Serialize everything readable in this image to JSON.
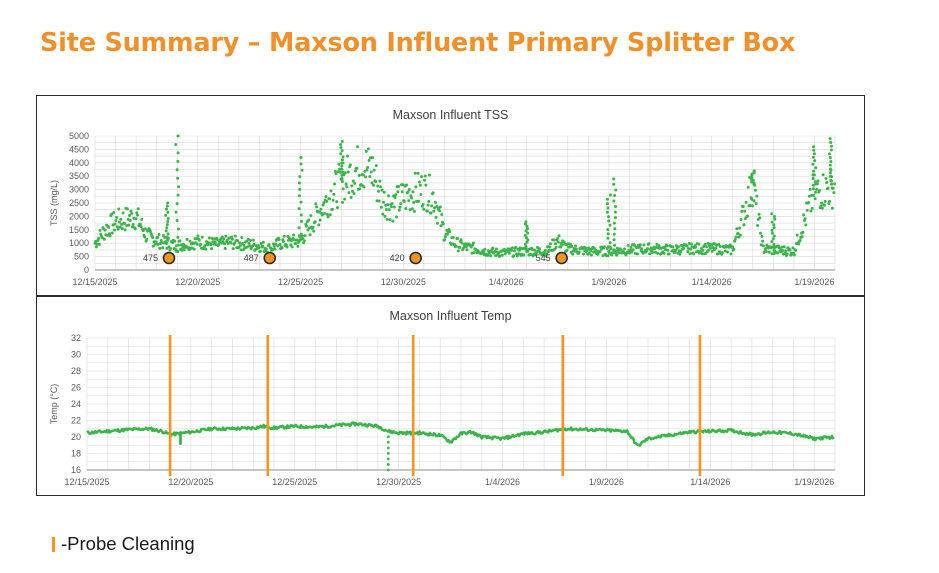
{
  "page": {
    "title": "Site Summary – Maxson Influent Primary Splitter Box"
  },
  "legend": {
    "label": "-Probe Cleaning"
  },
  "colors": {
    "title": "#F0902A",
    "series": "#3CB44B",
    "marker": "#F7941D",
    "marker_edge": "#2b2b2b",
    "grid": "#D9D9D9"
  },
  "chart_data": [
    {
      "id": "tss",
      "type": "scatter",
      "title": "Maxson Influent TSS",
      "xlabel": "",
      "ylabel": "TSS (mg/L)",
      "xlim": [
        0,
        36
      ],
      "ylim": [
        0,
        5000
      ],
      "yticks": [
        0,
        500,
        1000,
        1500,
        2000,
        2500,
        3000,
        3500,
        4000,
        4500,
        5000
      ],
      "xtick_positions": [
        0,
        5,
        10,
        15,
        20,
        25,
        30,
        35
      ],
      "xtick_labels": [
        "12/15/2025",
        "12/20/2025",
        "12/25/2025",
        "12/30/2025",
        "1/4/2026",
        "1/9/2026",
        "1/14/2026",
        "1/19/2026"
      ],
      "grid": true,
      "series": [
        {
          "name": "TSS",
          "points": [
            [
              0,
              1000
            ],
            [
              0.5,
              1500
            ],
            [
              1,
              1800
            ],
            [
              1.5,
              1900
            ],
            [
              2,
              2000
            ],
            [
              2.5,
              1300
            ],
            [
              3,
              1100
            ],
            [
              3.5,
              1000
            ],
            [
              4,
              900
            ],
            [
              4.5,
              1000
            ],
            [
              5,
              1050
            ],
            [
              5.5,
              1000
            ],
            [
              6,
              950
            ],
            [
              6.5,
              1050
            ],
            [
              7,
              1000
            ],
            [
              7.5,
              950
            ],
            [
              8,
              900
            ],
            [
              8.5,
              800
            ],
            [
              9,
              1000
            ],
            [
              10,
              1100
            ],
            [
              10.5,
              1700
            ],
            [
              11,
              2300
            ],
            [
              11.5,
              2800
            ],
            [
              12,
              3300
            ],
            [
              12.5,
              3600
            ],
            [
              13,
              3900
            ],
            [
              13.5,
              3700
            ],
            [
              14,
              2600
            ],
            [
              14.5,
              2400
            ],
            [
              15,
              2700
            ],
            [
              15.5,
              2900
            ],
            [
              16,
              3000
            ],
            [
              16.5,
              2700
            ],
            [
              17,
              1400
            ],
            [
              17.5,
              1000
            ],
            [
              18,
              850
            ],
            [
              18.5,
              800
            ],
            [
              19,
              700
            ],
            [
              19.5,
              650
            ],
            [
              20,
              650
            ],
            [
              21,
              700
            ],
            [
              22,
              700
            ],
            [
              22.5,
              1100
            ],
            [
              23,
              800
            ],
            [
              24,
              700
            ],
            [
              25,
              700
            ],
            [
              26,
              750
            ],
            [
              27,
              800
            ],
            [
              28,
              750
            ],
            [
              29,
              800
            ],
            [
              30,
              800
            ],
            [
              31,
              750
            ],
            [
              32,
              3200
            ],
            [
              32.5,
              800
            ],
            [
              33,
              750
            ],
            [
              34,
              700
            ],
            [
              35,
              2900
            ],
            [
              35.5,
              3000
            ],
            [
              36,
              3100
            ]
          ]
        }
      ],
      "spikes": [
        [
          4,
          5000
        ],
        [
          3.5,
          2500
        ],
        [
          10,
          4200
        ],
        [
          12,
          4800
        ],
        [
          21,
          1800
        ],
        [
          25,
          2800
        ],
        [
          25.3,
          3400
        ],
        [
          32,
          3700
        ],
        [
          33,
          2100
        ],
        [
          35,
          4600
        ],
        [
          35.8,
          4900
        ]
      ],
      "markers": [
        {
          "x": 3.6,
          "label": "475"
        },
        {
          "x": 8.5,
          "label": "487"
        },
        {
          "x": 15.6,
          "label": "420"
        },
        {
          "x": 22.7,
          "label": "545"
        }
      ]
    },
    {
      "id": "temp",
      "type": "line",
      "title": "Maxson Influent Temp",
      "xlabel": "",
      "ylabel": "Temp (°C)",
      "xlim": [
        0,
        36
      ],
      "ylim": [
        16,
        32
      ],
      "yticks": [
        16,
        18,
        20,
        22,
        24,
        26,
        28,
        30,
        32
      ],
      "xtick_positions": [
        0,
        5,
        10,
        15,
        20,
        25,
        30,
        35
      ],
      "xtick_labels": [
        "12/15/2025",
        "12/20/2025",
        "12/25/2025",
        "12/30/2025",
        "1/4/2026",
        "1/9/2026",
        "1/14/2026",
        "1/19/2026"
      ],
      "grid": true,
      "series": [
        {
          "name": "Temp",
          "points": [
            [
              0,
              20.5
            ],
            [
              1,
              20.7
            ],
            [
              2,
              20.9
            ],
            [
              3,
              21.0
            ],
            [
              3.6,
              20.7
            ],
            [
              4,
              20.3
            ],
            [
              5,
              20.6
            ],
            [
              6,
              21.0
            ],
            [
              7,
              21.0
            ],
            [
              8,
              21.1
            ],
            [
              8.5,
              21.3
            ],
            [
              9,
              21.1
            ],
            [
              10,
              21.3
            ],
            [
              11,
              21.2
            ],
            [
              12,
              21.4
            ],
            [
              13,
              21.6
            ],
            [
              14,
              21.3
            ],
            [
              14.5,
              20.7
            ],
            [
              15,
              20.5
            ],
            [
              16,
              20.5
            ],
            [
              17,
              20.2
            ],
            [
              17.5,
              19.4
            ],
            [
              18,
              20.4
            ],
            [
              18.5,
              20.6
            ],
            [
              19,
              20.0
            ],
            [
              20,
              19.8
            ],
            [
              21,
              20.4
            ],
            [
              22,
              20.6
            ],
            [
              23,
              21.0
            ],
            [
              24,
              20.9
            ],
            [
              25,
              20.8
            ],
            [
              26,
              20.7
            ],
            [
              26.5,
              18.9
            ],
            [
              27,
              19.8
            ],
            [
              28,
              20.2
            ],
            [
              29,
              20.6
            ],
            [
              30,
              20.7
            ],
            [
              31,
              20.8
            ],
            [
              32,
              20.3
            ],
            [
              33,
              20.6
            ],
            [
              34,
              20.4
            ],
            [
              35,
              19.8
            ],
            [
              36,
              20.0
            ]
          ]
        }
      ],
      "dips": [
        [
          4.5,
          19.2
        ],
        [
          14.5,
          16.0
        ]
      ],
      "probe_cleaning_x": [
        4.0,
        8.7,
        15.7,
        22.9,
        29.5
      ]
    }
  ]
}
